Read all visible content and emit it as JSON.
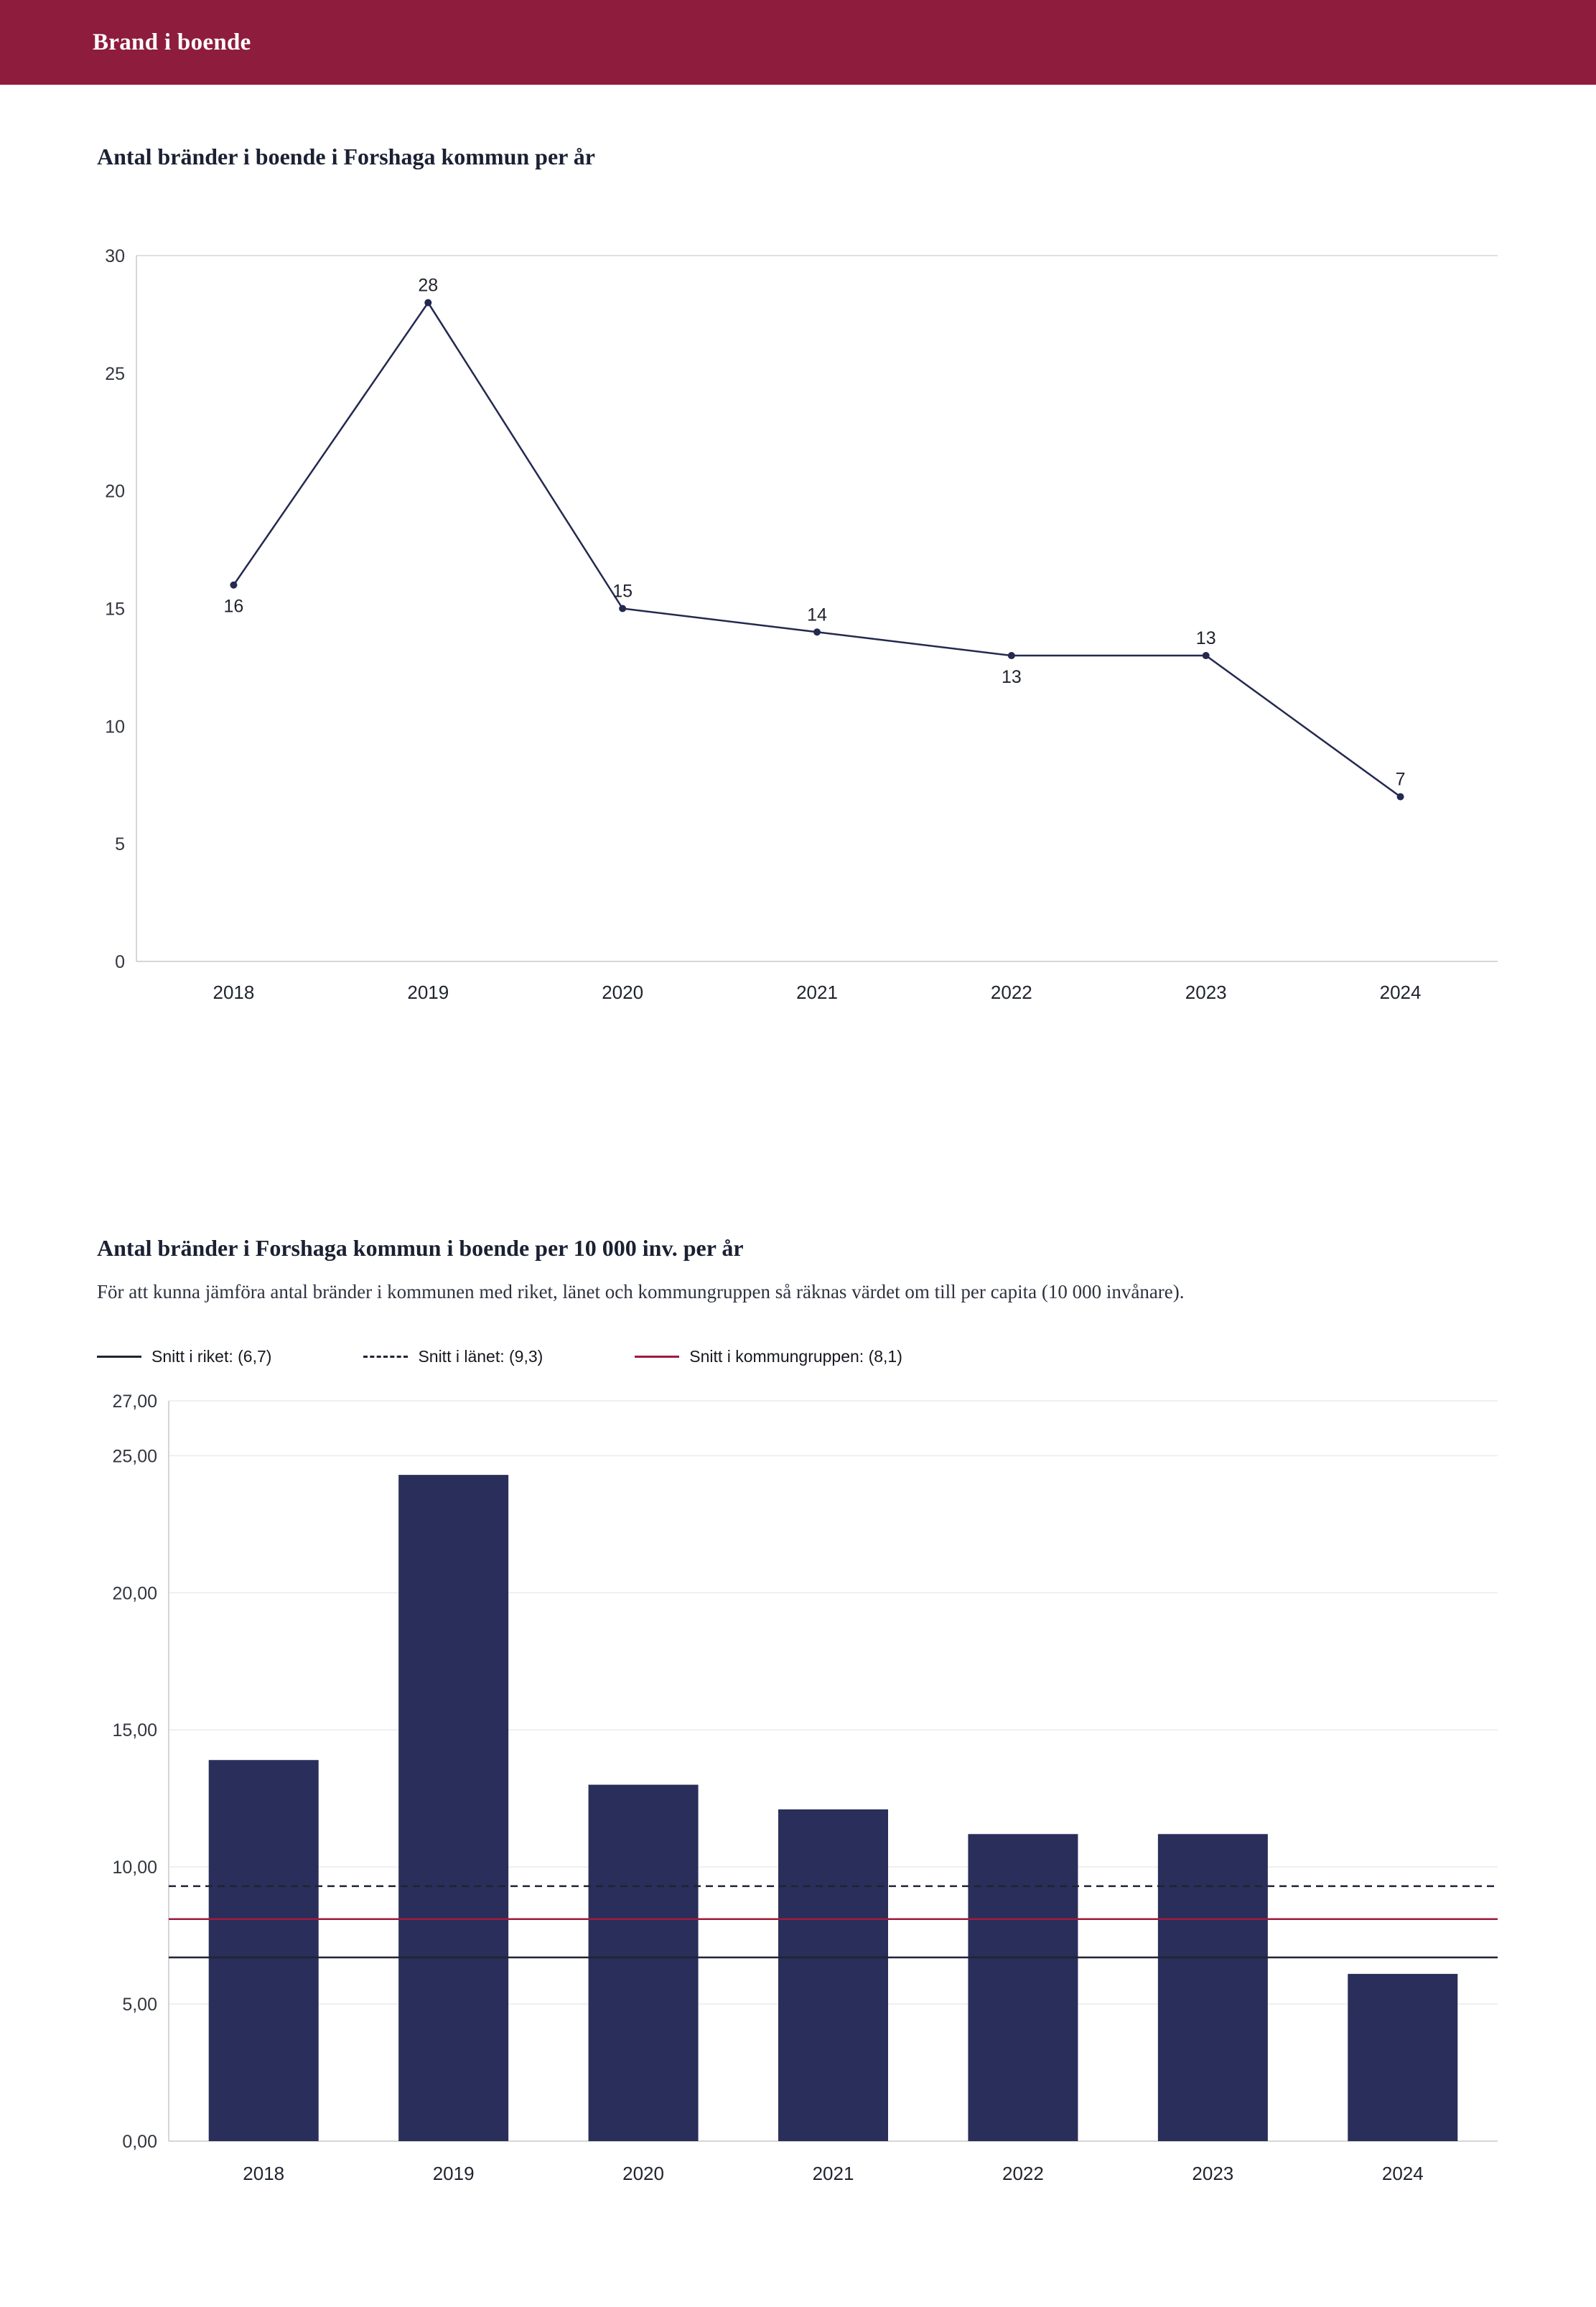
{
  "header": {
    "title": "Brand i boende"
  },
  "colors": {
    "header_bg": "#8e1c3c",
    "navy": "#2a2e5a",
    "line_navy": "#242950",
    "crimson": "#9e1b3e",
    "dark_line": "#1f2433",
    "grid_light": "#ebebeb",
    "axis_gray": "#c9c9c9",
    "tick_text": "#33363f"
  },
  "section1": {
    "title": "Antal bränder i boende i Forshaga kommun per år"
  },
  "section2": {
    "title": "Antal bränder i Forshaga kommun i boende per 10 000 inv. per år",
    "subtitle": "För att kunna jämföra antal bränder i kommunen med riket, länet och kommungruppen så räknas värdet om till per capita (10 000 invånare).",
    "legend": [
      {
        "label": "Snitt i riket: (6,7)",
        "style": "solid",
        "color": "#1f2433",
        "value": 6.7
      },
      {
        "label": "Snitt i länet: (9,3)",
        "style": "dashed",
        "color": "#1f2433",
        "value": 9.3
      },
      {
        "label": "Snitt i kommungruppen: (8,1)",
        "style": "solid",
        "color": "#9e1b3e",
        "value": 8.1
      }
    ]
  },
  "chart_data": [
    {
      "type": "line",
      "title": "Antal bränder i boende i Forshaga kommun per år",
      "categories": [
        "2018",
        "2019",
        "2020",
        "2021",
        "2022",
        "2023",
        "2024"
      ],
      "values": [
        16,
        28,
        15,
        14,
        13,
        13,
        7
      ],
      "label_positions": [
        "below",
        "above",
        "above",
        "above",
        "below",
        "above",
        "above"
      ],
      "xlabel": "",
      "ylabel": "",
      "ylim": [
        0,
        30
      ],
      "yticks": [
        0,
        5,
        10,
        15,
        20,
        25,
        30
      ],
      "grid": "horizontal top/bottom only",
      "legend_position": "none",
      "line_color": "#242950",
      "marker": "dot"
    },
    {
      "type": "bar",
      "title": "Antal bränder i Forshaga kommun i boende per 10 000 inv. per år",
      "categories": [
        "2018",
        "2019",
        "2020",
        "2021",
        "2022",
        "2023",
        "2024"
      ],
      "values": [
        13.9,
        24.3,
        13.0,
        12.1,
        11.2,
        11.2,
        6.1
      ],
      "xlabel": "",
      "ylabel": "",
      "ylim": [
        0,
        27
      ],
      "yticks": [
        0,
        5,
        10,
        15,
        20,
        25,
        27
      ],
      "ytick_labels": [
        "0,00",
        "5,00",
        "10,00",
        "15,00",
        "20,00",
        "25,00",
        "27,00"
      ],
      "grid": "light horizontal gridlines",
      "legend_position": "above-left",
      "bar_color": "#2a2e5a",
      "reference_lines": [
        {
          "label": "Snitt i riket",
          "value": 6.7,
          "style": "solid",
          "color": "#1f2433"
        },
        {
          "label": "Snitt i länet",
          "value": 9.3,
          "style": "dashed",
          "color": "#1f2433"
        },
        {
          "label": "Snitt i kommungruppen",
          "value": 8.1,
          "style": "solid",
          "color": "#9e1b3e"
        }
      ]
    }
  ]
}
